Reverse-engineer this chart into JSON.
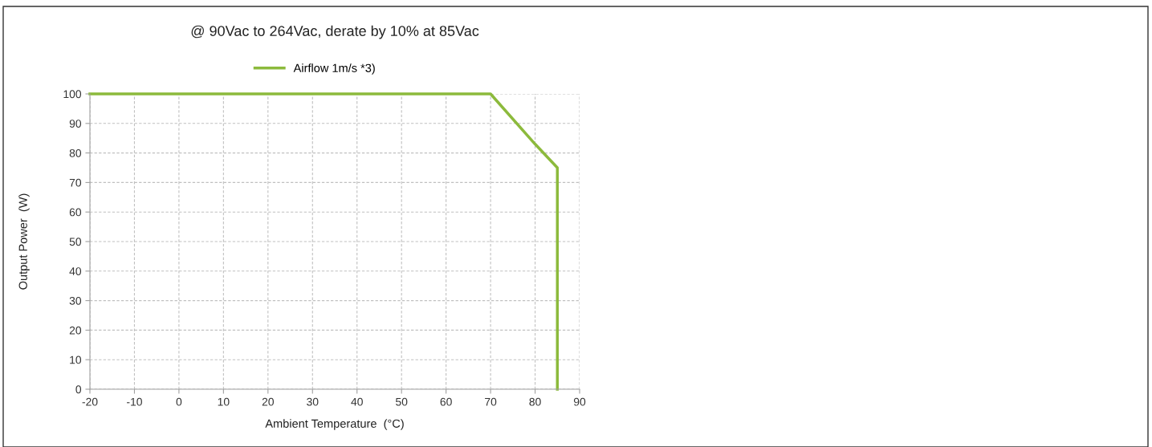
{
  "chart_data": {
    "type": "line",
    "title": "@ 90Vac to 264Vac, derate by 10% at 85Vac",
    "xlabel": "Ambient Temperature  (°C)",
    "ylabel": "Output Power  (W)",
    "x": [
      -20,
      70,
      80,
      85,
      85
    ],
    "series": [
      {
        "name": "Airflow 1m/s *3)",
        "color": "#8cba3c",
        "values": [
          100,
          100,
          83,
          75,
          0
        ]
      }
    ],
    "xlim": [
      -20,
      90
    ],
    "xticks": [
      -20,
      -10,
      0,
      10,
      20,
      30,
      40,
      50,
      60,
      70,
      80,
      90
    ],
    "ylim": [
      0,
      100
    ],
    "yticks": [
      0,
      10,
      20,
      30,
      40,
      50,
      60,
      70,
      80,
      90,
      100
    ],
    "grid": true,
    "legend": "top",
    "marker": "none",
    "line_style": "solid"
  }
}
